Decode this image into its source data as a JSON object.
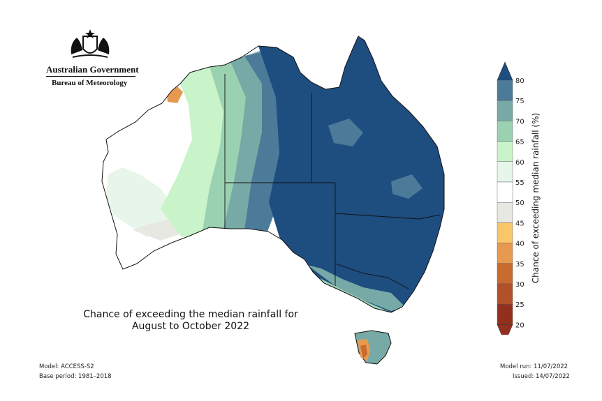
{
  "header": {
    "government": "Australian Government",
    "bureau": "Bureau of Meteorology"
  },
  "caption": {
    "line1": "Chance of exceeding the median rainfall for",
    "line2": "August to October 2022"
  },
  "footer": {
    "model": "Model: ACCESS-S2",
    "base_period": "Base period: 1981–2018",
    "model_run": "Model run: 11/07/2022",
    "issued": "Issued: 14/07/2022"
  },
  "legend": {
    "title": "Chance of exceeding median rainfall (%)",
    "ticks": [
      "80",
      "75",
      "70",
      "65",
      "60",
      "55",
      "50",
      "45",
      "40",
      "35",
      "30",
      "25",
      "20"
    ],
    "colors": [
      "#1e4d80",
      "#4c7b9a",
      "#77a9a6",
      "#9ad1b1",
      "#c9f3c9",
      "#e8f5ea",
      "#ffffff",
      "#e8e8e2",
      "#f9c66a",
      "#e79a4f",
      "#c96a2e",
      "#b1512a",
      "#93301d"
    ],
    "top_arrow_color": "#1e4d80",
    "bottom_arrow_color": "#93301d"
  },
  "map_colors": {
    "very_wet": "#1e4d80",
    "wet": "#4c7b9a",
    "moderate": "#77a9a6",
    "light": "#9ad1b1",
    "pale": "#c9f3c9",
    "neutral": "#ffffff",
    "dry_grey": "#e8e8e2",
    "dry_orange": "#e79a4f",
    "border": "#111111"
  }
}
